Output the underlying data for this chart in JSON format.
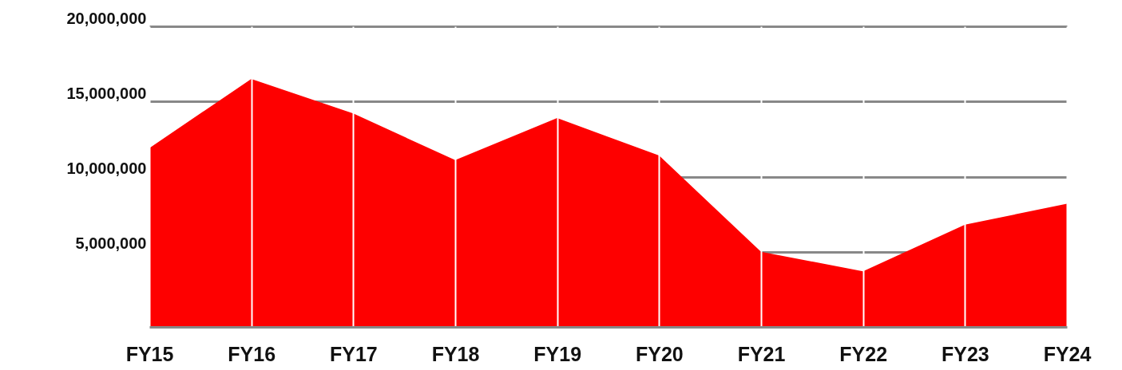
{
  "chart_data": {
    "type": "area",
    "categories": [
      "FY15",
      "FY16",
      "FY17",
      "FY18",
      "FY19",
      "FY20",
      "FY21",
      "FY22",
      "FY23",
      "FY24"
    ],
    "values": [
      11900000,
      16500000,
      14200000,
      11100000,
      13900000,
      11400000,
      5000000,
      3700000,
      6800000,
      8200000
    ],
    "color": "#fe0000",
    "ylim": [
      0,
      20000000
    ],
    "yticks": [
      {
        "value": 5000000,
        "label": "5,000,000"
      },
      {
        "value": 10000000,
        "label": "10,000,000"
      },
      {
        "value": 15000000,
        "label": "15,000,000"
      },
      {
        "value": 20000000,
        "label": "20,000,000"
      }
    ],
    "grid": true
  }
}
